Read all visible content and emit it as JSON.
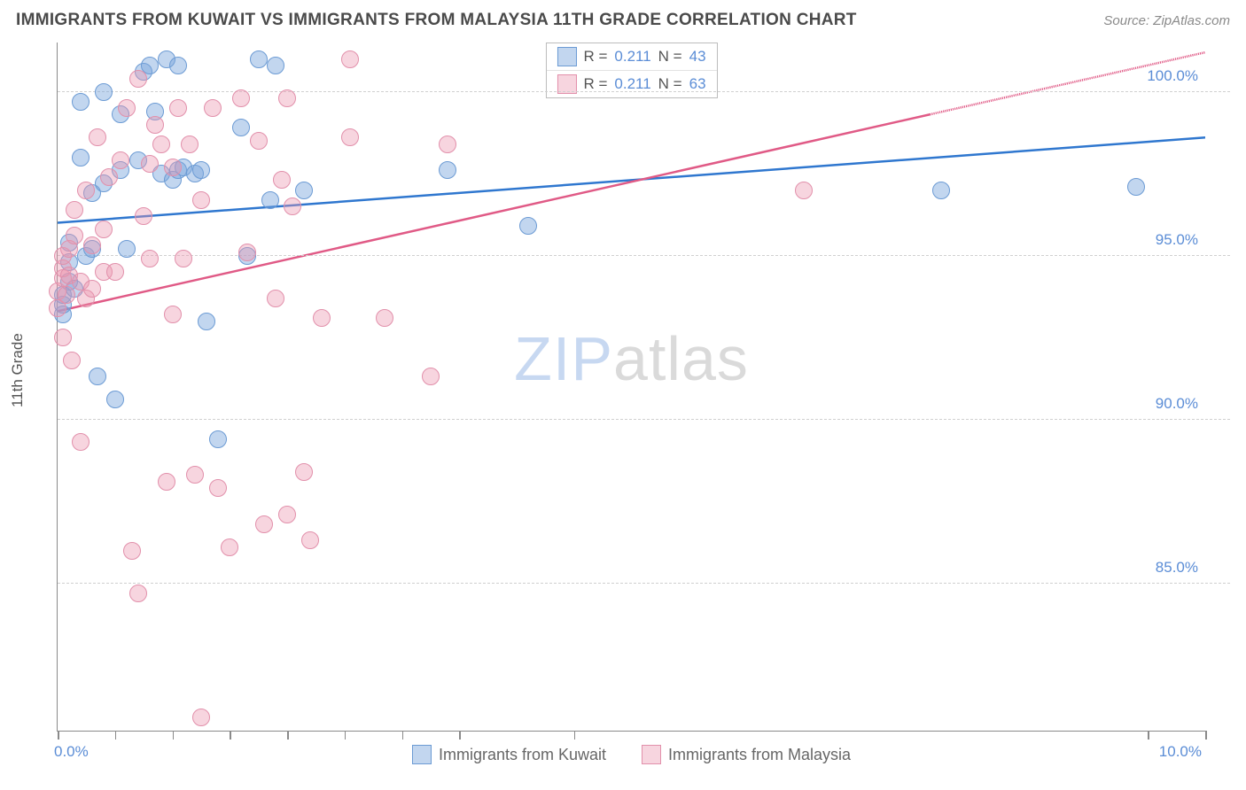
{
  "title": "IMMIGRANTS FROM KUWAIT VS IMMIGRANTS FROM MALAYSIA 11TH GRADE CORRELATION CHART",
  "source_label": "Source: ",
  "source_name": "ZipAtlas.com",
  "yaxis_title": "11th Grade",
  "watermark_a": "ZIP",
  "watermark_b": "atlas",
  "chart": {
    "type": "scatter",
    "background_color": "#ffffff",
    "grid_color": "#d0d0d0",
    "axis_color": "#8a8a8a",
    "text_color": "#555555",
    "value_color": "#5b8dd6",
    "title_fontsize": 19,
    "label_fontsize": 17,
    "xlim": [
      0,
      10
    ],
    "ylim": [
      80.5,
      101.5
    ],
    "xtick_positions": [
      0,
      0.5,
      1.0,
      1.5,
      2.0,
      2.5,
      3.0,
      3.5,
      4.5,
      9.5,
      10.0
    ],
    "xlabels": [
      {
        "x": 0.0,
        "text": "0.0%"
      },
      {
        "x": 10.0,
        "text": "10.0%"
      }
    ],
    "ygrid": [
      {
        "y": 85.0,
        "label": "85.0%"
      },
      {
        "y": 90.0,
        "label": "90.0%"
      },
      {
        "y": 95.0,
        "label": "95.0%"
      },
      {
        "y": 100.0,
        "label": "100.0%"
      }
    ],
    "series": [
      {
        "name": "Immigrants from Kuwait",
        "color_fill": "rgba(120,165,220,0.45)",
        "color_stroke": "#6c9bd4",
        "line_color": "#2f77cf",
        "line_width": 2.5,
        "R": "0.211",
        "N": "43",
        "trend": {
          "x1": 0.0,
          "y1": 96.0,
          "x2": 10.0,
          "y2": 98.6
        },
        "points": [
          [
            0.05,
            93.2
          ],
          [
            0.05,
            93.5
          ],
          [
            0.05,
            93.8
          ],
          [
            0.1,
            94.2
          ],
          [
            0.1,
            94.8
          ],
          [
            0.1,
            95.4
          ],
          [
            0.15,
            94.0
          ],
          [
            0.2,
            98.0
          ],
          [
            0.2,
            99.7
          ],
          [
            0.25,
            95.0
          ],
          [
            0.3,
            95.2
          ],
          [
            0.3,
            96.9
          ],
          [
            0.35,
            91.3
          ],
          [
            0.4,
            100.0
          ],
          [
            0.4,
            97.2
          ],
          [
            0.5,
            90.6
          ],
          [
            0.55,
            97.6
          ],
          [
            0.55,
            99.3
          ],
          [
            0.6,
            95.2
          ],
          [
            0.7,
            97.9
          ],
          [
            0.75,
            100.6
          ],
          [
            0.8,
            100.8
          ],
          [
            0.85,
            99.4
          ],
          [
            0.9,
            97.5
          ],
          [
            0.95,
            101.0
          ],
          [
            1.0,
            97.3
          ],
          [
            1.05,
            100.8
          ],
          [
            1.05,
            97.6
          ],
          [
            1.1,
            97.7
          ],
          [
            1.2,
            97.5
          ],
          [
            1.25,
            97.6
          ],
          [
            1.3,
            93.0
          ],
          [
            1.4,
            89.4
          ],
          [
            1.6,
            98.9
          ],
          [
            1.65,
            95.0
          ],
          [
            1.75,
            101.0
          ],
          [
            1.85,
            96.7
          ],
          [
            1.9,
            100.8
          ],
          [
            2.15,
            97.0
          ],
          [
            3.4,
            97.6
          ],
          [
            4.1,
            95.9
          ],
          [
            7.7,
            97.0
          ],
          [
            9.4,
            97.1
          ]
        ]
      },
      {
        "name": "Immigrants from Malaysia",
        "color_fill": "rgba(235,150,175,0.40)",
        "color_stroke": "#e290ab",
        "line_color": "#e05a86",
        "line_width": 2.5,
        "R": "0.211",
        "N": "63",
        "trend": {
          "x1": 0.0,
          "y1": 93.3,
          "x2": 10.0,
          "y2": 101.2
        },
        "trend_dash_after_x": 7.6,
        "points": [
          [
            0.0,
            93.4
          ],
          [
            0.0,
            93.9
          ],
          [
            0.05,
            94.3
          ],
          [
            0.05,
            94.6
          ],
          [
            0.05,
            95.0
          ],
          [
            0.05,
            92.5
          ],
          [
            0.08,
            93.8
          ],
          [
            0.1,
            94.4
          ],
          [
            0.1,
            95.2
          ],
          [
            0.12,
            91.8
          ],
          [
            0.15,
            95.6
          ],
          [
            0.15,
            96.4
          ],
          [
            0.2,
            94.2
          ],
          [
            0.2,
            89.3
          ],
          [
            0.25,
            97.0
          ],
          [
            0.25,
            93.7
          ],
          [
            0.3,
            95.3
          ],
          [
            0.3,
            94.0
          ],
          [
            0.35,
            98.6
          ],
          [
            0.4,
            94.5
          ],
          [
            0.4,
            95.8
          ],
          [
            0.45,
            97.4
          ],
          [
            0.5,
            94.5
          ],
          [
            0.55,
            97.9
          ],
          [
            0.6,
            99.5
          ],
          [
            0.65,
            86.0
          ],
          [
            0.7,
            100.4
          ],
          [
            0.7,
            84.7
          ],
          [
            0.75,
            96.2
          ],
          [
            0.8,
            97.8
          ],
          [
            0.8,
            94.9
          ],
          [
            0.85,
            99.0
          ],
          [
            0.9,
            98.4
          ],
          [
            0.95,
            88.1
          ],
          [
            1.0,
            97.7
          ],
          [
            1.0,
            93.2
          ],
          [
            1.05,
            99.5
          ],
          [
            1.1,
            94.9
          ],
          [
            1.15,
            98.4
          ],
          [
            1.2,
            88.3
          ],
          [
            1.25,
            96.7
          ],
          [
            1.25,
            80.9
          ],
          [
            1.35,
            99.5
          ],
          [
            1.4,
            87.9
          ],
          [
            1.5,
            86.1
          ],
          [
            1.6,
            99.8
          ],
          [
            1.65,
            95.1
          ],
          [
            1.75,
            98.5
          ],
          [
            1.8,
            86.8
          ],
          [
            1.9,
            93.7
          ],
          [
            1.95,
            97.3
          ],
          [
            2.0,
            99.8
          ],
          [
            2.0,
            87.1
          ],
          [
            2.05,
            96.5
          ],
          [
            2.15,
            88.4
          ],
          [
            2.2,
            86.3
          ],
          [
            2.3,
            93.1
          ],
          [
            2.55,
            98.6
          ],
          [
            2.55,
            101.0
          ],
          [
            2.85,
            93.1
          ],
          [
            3.25,
            91.3
          ],
          [
            3.4,
            98.4
          ],
          [
            6.5,
            97.0
          ]
        ]
      }
    ],
    "legend_top": [
      {
        "swatch": 0,
        "prefix": "R = ",
        "r": "0.211",
        "mid": "   N = ",
        "n": "43"
      },
      {
        "swatch": 1,
        "prefix": "R = ",
        "r": "0.211",
        "mid": "   N = ",
        "n": "63"
      }
    ]
  }
}
